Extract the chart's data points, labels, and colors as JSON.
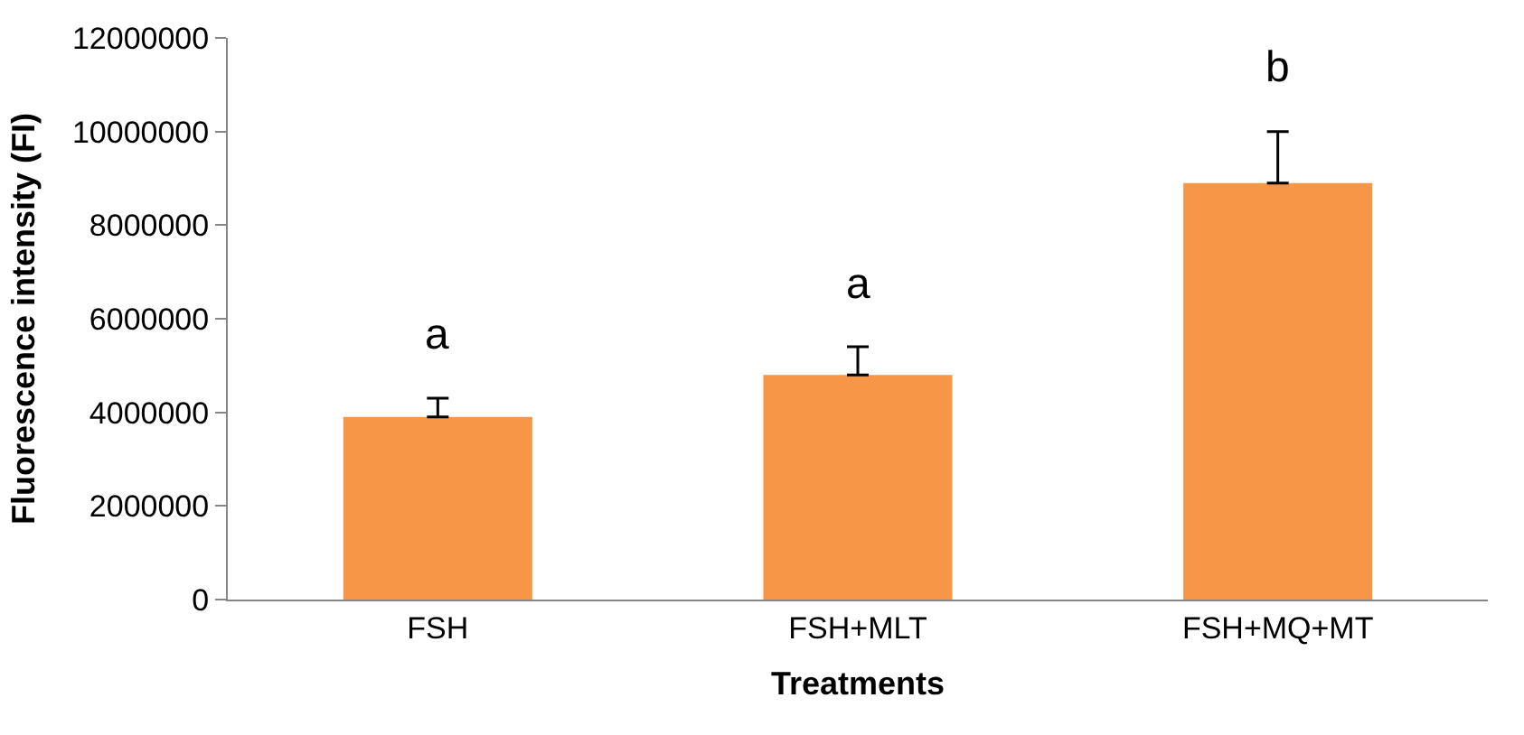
{
  "chart_data": {
    "type": "bar",
    "xlabel": "Treatments",
    "ylabel": "Fluorescence intensity (FI)",
    "categories": [
      "FSH",
      "FSH+MLT",
      "FSH+MQ+MT"
    ],
    "values": [
      3900000,
      4800000,
      8900000
    ],
    "color": "#f79646",
    "errors": [
      [
        3900000,
        4300000
      ],
      [
        4800000,
        5400000
      ],
      [
        8900000,
        10000000
      ]
    ],
    "ylim": [
      0,
      12000000
    ],
    "yticks": [
      0,
      2000000,
      4000000,
      6000000,
      8000000,
      10000000,
      12000000
    ],
    "legend": false,
    "annotations": [
      "a",
      "a",
      "b"
    ]
  }
}
